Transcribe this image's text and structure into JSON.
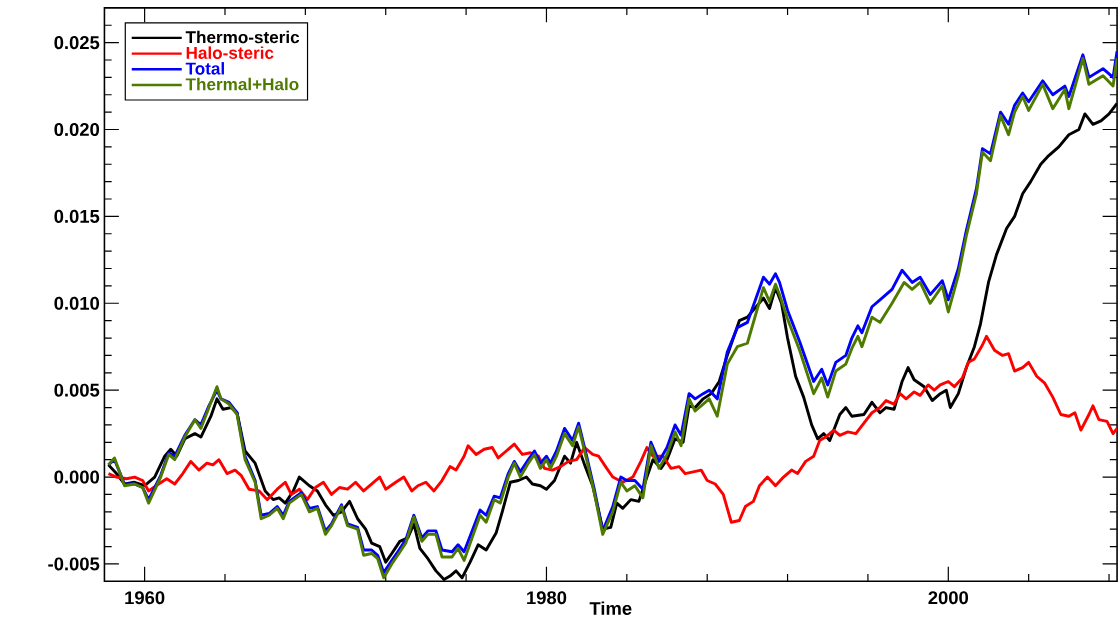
{
  "chart_data": {
    "type": "line",
    "xlabel": "Time",
    "legend": "top left",
    "line_style": "solid",
    "xlim": [
      1958,
      2008.4
    ],
    "ylim": [
      -0.006,
      0.027
    ],
    "xticks": [
      1960,
      {
        "value": 1964,
        "label": null
      },
      {
        "value": 1968,
        "label": null
      },
      {
        "value": 1972,
        "label": null
      },
      {
        "value": 1976,
        "label": null
      },
      1980,
      {
        "value": 1984,
        "label": null
      },
      {
        "value": 1988,
        "label": null
      },
      {
        "value": 1992,
        "label": null
      },
      {
        "value": 1996,
        "label": null
      },
      2000,
      {
        "value": 2004,
        "label": null
      },
      {
        "value": 2008,
        "label": null
      }
    ],
    "yticks": [
      {
        "value": -0.005,
        "label": "-0.005"
      },
      {
        "value": 0,
        "label": "0.000"
      },
      {
        "value": 0.005,
        "label": "0.005"
      },
      {
        "value": 0.01,
        "label": "0.010"
      },
      {
        "value": 0.015,
        "label": "0.015"
      },
      {
        "value": 0.02,
        "label": "0.020"
      },
      {
        "value": 0.025,
        "label": "0.025"
      },
      {
        "value": -0.004,
        "label": null
      },
      {
        "value": -0.003,
        "label": null
      },
      {
        "value": -0.002,
        "label": null
      },
      {
        "value": -0.001,
        "label": null
      },
      {
        "value": 0.001,
        "label": null
      },
      {
        "value": 0.002,
        "label": null
      },
      {
        "value": 0.003,
        "label": null
      },
      {
        "value": 0.004,
        "label": null
      },
      {
        "value": 0.006,
        "label": null
      },
      {
        "value": 0.007,
        "label": null
      },
      {
        "value": 0.008,
        "label": null
      },
      {
        "value": 0.009,
        "label": null
      },
      {
        "value": 0.011,
        "label": null
      },
      {
        "value": 0.012,
        "label": null
      },
      {
        "value": 0.013,
        "label": null
      },
      {
        "value": 0.014,
        "label": null
      },
      {
        "value": 0.016,
        "label": null
      },
      {
        "value": 0.017,
        "label": null
      },
      {
        "value": 0.018,
        "label": null
      },
      {
        "value": 0.019,
        "label": null
      },
      {
        "value": 0.021,
        "label": null
      },
      {
        "value": 0.022,
        "label": null
      },
      {
        "value": 0.023,
        "label": null
      },
      {
        "value": 0.024,
        "label": null
      },
      {
        "value": 0.026,
        "label": null
      }
    ],
    "series": [
      {
        "name": "Thermo-steric",
        "color": "#000000",
        "x": [
          1958.2,
          1958.6,
          1959.0,
          1959.5,
          1960.0,
          1960.5,
          1961.0,
          1961.3,
          1961.6,
          1962.0,
          1962.5,
          1962.8,
          1963.3,
          1963.6,
          1963.9,
          1964.3,
          1964.6,
          1965.0,
          1965.5,
          1966.0,
          1966.4,
          1966.7,
          1967.0,
          1967.4,
          1967.7,
          1968.2,
          1968.6,
          1969.0,
          1969.4,
          1969.8,
          1970.2,
          1970.6,
          1971.0,
          1971.3,
          1971.7,
          1972.0,
          1972.3,
          1972.7,
          1973.1,
          1973.4,
          1973.7,
          1974.1,
          1974.5,
          1974.9,
          1975.2,
          1975.5,
          1975.8,
          1976.2,
          1976.6,
          1977.0,
          1977.5,
          1977.8,
          1978.2,
          1978.6,
          1979.0,
          1979.3,
          1979.7,
          1980.0,
          1980.4,
          1980.9,
          1981.2,
          1981.5,
          1981.9,
          1982.3,
          1982.8,
          1983.2,
          1983.5,
          1983.8,
          1984.2,
          1984.6,
          1985.0,
          1985.3,
          1985.7,
          1986.0,
          1986.4,
          1986.8,
          1987.1,
          1987.4,
          1987.8,
          1988.2,
          1988.6,
          1989.0,
          1989.6,
          1990.0,
          1990.8,
          1991.1,
          1991.4,
          1991.7,
          1992.0,
          1992.4,
          1992.8,
          1993.2,
          1993.5,
          1993.8,
          1994.1,
          1994.6,
          1994.9,
          1995.2,
          1995.8,
          1996.2,
          1996.6,
          1996.9,
          1997.3,
          1997.7,
          1998.0,
          1998.3,
          1998.8,
          1999.2,
          1999.6,
          1999.9,
          2000.1,
          2000.5,
          2000.9,
          2001.3,
          2001.6,
          2002.0,
          2002.4,
          2002.9,
          2003.3,
          2003.7,
          2004.1,
          2004.6,
          2005.0,
          2005.5,
          2006.0,
          2006.5,
          2006.8,
          2007.2,
          2007.6,
          2008.0,
          2008.4
        ],
        "values": [
          0.0007,
          0.0002,
          -0.0004,
          -0.0003,
          -0.0005,
          0.0,
          0.0012,
          0.0016,
          0.0012,
          0.0022,
          0.0025,
          0.0023,
          0.0035,
          0.0045,
          0.0039,
          0.004,
          0.0037,
          0.0015,
          0.0008,
          -0.0008,
          -0.0013,
          -0.0012,
          -0.0015,
          -0.0008,
          0.0,
          -0.0005,
          -0.0008,
          -0.0016,
          -0.0022,
          -0.002,
          -0.0014,
          -0.0024,
          -0.003,
          -0.0038,
          -0.004,
          -0.0049,
          -0.0044,
          -0.0037,
          -0.0035,
          -0.0027,
          -0.0041,
          -0.0047,
          -0.0054,
          -0.0059,
          -0.0057,
          -0.0054,
          -0.0058,
          -0.0049,
          -0.0039,
          -0.0042,
          -0.0032,
          -0.002,
          -0.0003,
          -0.0002,
          0.0,
          -0.0004,
          -0.0005,
          -0.0007,
          -0.0002,
          0.0012,
          0.0008,
          0.002,
          0.0007,
          -0.0005,
          -0.003,
          -0.0029,
          -0.0015,
          -0.0018,
          -0.0013,
          -0.0014,
          0.0,
          0.001,
          0.0005,
          0.001,
          0.0022,
          0.002,
          0.0041,
          0.004,
          0.0045,
          0.0048,
          0.0055,
          0.007,
          0.009,
          0.0092,
          0.0103,
          0.0097,
          0.0109,
          0.01,
          0.008,
          0.0058,
          0.0046,
          0.003,
          0.0022,
          0.0025,
          0.0021,
          0.0036,
          0.004,
          0.0035,
          0.0036,
          0.0043,
          0.0037,
          0.004,
          0.0039,
          0.0055,
          0.0063,
          0.0056,
          0.0052,
          0.0044,
          0.0048,
          0.005,
          0.004,
          0.0048,
          0.0063,
          0.0075,
          0.0088,
          0.0112,
          0.0128,
          0.0143,
          0.015,
          0.0163,
          0.017,
          0.018,
          0.0185,
          0.019,
          0.0197,
          0.02,
          0.0209,
          0.0203,
          0.0205,
          0.0209,
          0.0215
        ]
      },
      {
        "name": "Halo-steric",
        "color": "#ff0000",
        "x": [
          1958.2,
          1958.6,
          1959.1,
          1959.5,
          1959.9,
          1960.2,
          1960.7,
          1961.1,
          1961.5,
          1961.9,
          1962.3,
          1962.7,
          1963.1,
          1963.4,
          1963.7,
          1964.1,
          1964.5,
          1964.8,
          1965.2,
          1965.7,
          1966.1,
          1966.6,
          1967.0,
          1967.3,
          1967.7,
          1968.1,
          1968.5,
          1968.9,
          1969.3,
          1969.7,
          1970.1,
          1970.5,
          1970.9,
          1971.3,
          1971.7,
          1972.0,
          1972.5,
          1972.9,
          1973.3,
          1973.6,
          1974.0,
          1974.4,
          1974.8,
          1975.2,
          1975.5,
          1975.9,
          1976.1,
          1976.5,
          1976.9,
          1977.3,
          1977.6,
          1978.0,
          1978.4,
          1978.8,
          1979.2,
          1979.6,
          1979.9,
          1980.3,
          1980.7,
          1981.1,
          1981.5,
          1981.9,
          1982.3,
          1982.6,
          1983.0,
          1983.3,
          1983.8,
          1984.3,
          1984.7,
          1985.0,
          1985.3,
          1985.8,
          1986.2,
          1986.6,
          1986.9,
          1987.3,
          1987.7,
          1988.0,
          1988.4,
          1988.8,
          1989.2,
          1989.6,
          1989.9,
          1990.3,
          1990.6,
          1991.0,
          1991.4,
          1991.8,
          1992.2,
          1992.5,
          1992.9,
          1993.3,
          1993.6,
          1993.9,
          1994.3,
          1994.6,
          1995.0,
          1995.4,
          1995.8,
          1996.2,
          1996.6,
          1996.9,
          1997.3,
          1997.6,
          1997.9,
          1998.3,
          1998.6,
          1999.0,
          1999.3,
          1999.6,
          2000.0,
          2000.3,
          2000.7,
          2001.0,
          2001.3,
          2001.7,
          2001.9,
          2002.3,
          2002.7,
          2003.0,
          2003.3,
          2003.7,
          2004.0,
          2004.4,
          2004.8,
          2005.2,
          2005.6,
          2006.0,
          2006.3,
          2006.6,
          2007.0,
          2007.2,
          2007.5,
          2007.9,
          2008.2,
          2008.4
        ],
        "values": [
          0.0002,
          0.0,
          -0.0001,
          0.0,
          -0.0002,
          -0.0008,
          -0.0004,
          -0.0001,
          -0.0004,
          0.0002,
          0.0009,
          0.0004,
          0.0008,
          0.0007,
          0.001,
          0.0002,
          0.0004,
          0.0001,
          -0.0007,
          -0.0008,
          -0.0013,
          -0.0007,
          -0.0003,
          -0.001,
          -0.0007,
          -0.0013,
          -0.0006,
          -0.0003,
          -0.001,
          -0.0006,
          -0.0007,
          -0.0003,
          -0.0008,
          -0.0004,
          0.0,
          -0.0007,
          -0.0003,
          0.0,
          -0.0008,
          -0.0005,
          -0.0003,
          -0.0008,
          -0.0002,
          0.0006,
          0.0004,
          0.0012,
          0.0018,
          0.0013,
          0.0016,
          0.0017,
          0.0011,
          0.0015,
          0.0019,
          0.0013,
          0.0014,
          0.0012,
          0.0005,
          0.0004,
          0.0006,
          0.0009,
          0.001,
          0.0017,
          0.0013,
          0.0012,
          0.0005,
          0.0,
          -0.0003,
          0.0,
          0.0009,
          0.0017,
          0.0012,
          0.0012,
          0.0005,
          0.0006,
          0.0002,
          0.0003,
          0.0004,
          -0.0002,
          -0.0004,
          -0.001,
          -0.0026,
          -0.0025,
          -0.0017,
          -0.0014,
          -0.0005,
          0.0,
          -0.0005,
          0.0,
          0.0004,
          0.0002,
          0.0009,
          0.0012,
          0.0021,
          0.0023,
          0.0027,
          0.0024,
          0.0026,
          0.0025,
          0.0031,
          0.0037,
          0.004,
          0.0044,
          0.0042,
          0.0048,
          0.0045,
          0.0049,
          0.0047,
          0.0053,
          0.005,
          0.0053,
          0.0055,
          0.0052,
          0.0057,
          0.0066,
          0.0068,
          0.0076,
          0.0081,
          0.0073,
          0.007,
          0.0071,
          0.0061,
          0.0063,
          0.0066,
          0.0058,
          0.0054,
          0.0046,
          0.0036,
          0.0035,
          0.0037,
          0.0027,
          0.0036,
          0.0041,
          0.0033,
          0.0032,
          0.0025,
          0.0028
        ]
      },
      {
        "name": "Total",
        "color": "#0000ff",
        "x": [
          1958.2,
          1958.5,
          1959.0,
          1959.5,
          1959.9,
          1960.2,
          1960.8,
          1961.2,
          1961.5,
          1962.0,
          1962.5,
          1962.8,
          1963.2,
          1963.6,
          1963.8,
          1964.2,
          1964.6,
          1965.0,
          1965.5,
          1965.8,
          1966.2,
          1966.6,
          1966.9,
          1967.2,
          1967.8,
          1968.2,
          1968.6,
          1969.0,
          1969.3,
          1969.8,
          1970.1,
          1970.6,
          1970.9,
          1971.3,
          1971.6,
          1971.9,
          1972.3,
          1972.6,
          1973.0,
          1973.4,
          1973.8,
          1974.1,
          1974.5,
          1974.8,
          1975.3,
          1975.6,
          1975.9,
          1976.3,
          1976.7,
          1977.0,
          1977.4,
          1977.7,
          1978.1,
          1978.4,
          1978.7,
          1979.1,
          1979.4,
          1979.7,
          1980.0,
          1980.2,
          1980.5,
          1980.9,
          1981.3,
          1981.6,
          1982.0,
          1982.4,
          1982.8,
          1983.3,
          1983.7,
          1984.0,
          1984.4,
          1984.8,
          1985.2,
          1985.6,
          1986.0,
          1986.4,
          1986.7,
          1987.1,
          1987.4,
          1987.8,
          1988.1,
          1988.5,
          1989.0,
          1989.5,
          1990.0,
          1990.8,
          1991.1,
          1991.4,
          1991.6,
          1992.0,
          1992.6,
          1993.3,
          1993.7,
          1994.0,
          1994.4,
          1994.9,
          1995.2,
          1995.5,
          1995.7,
          1996.2,
          1996.6,
          1997.2,
          1997.7,
          1998.2,
          1998.6,
          1999.1,
          1999.7,
          2000.0,
          2000.5,
          2000.9,
          2001.4,
          2001.7,
          2002.1,
          2002.6,
          2003.0,
          2003.3,
          2003.7,
          2004.0,
          2004.7,
          2005.2,
          2005.8,
          2006.0,
          2006.7,
          2007.0,
          2007.7,
          2008.2,
          2008.4
        ],
        "values": [
          0.0007,
          0.001,
          -0.0004,
          -0.0004,
          -0.0006,
          -0.0013,
          0.0001,
          0.0014,
          0.0012,
          0.0024,
          0.0033,
          0.003,
          0.0041,
          0.005,
          0.0045,
          0.0043,
          0.0037,
          0.0012,
          -0.0002,
          -0.0022,
          -0.0021,
          -0.0017,
          -0.0022,
          -0.0014,
          -0.0009,
          -0.0018,
          -0.0017,
          -0.0031,
          -0.0027,
          -0.0016,
          -0.0027,
          -0.0029,
          -0.0042,
          -0.0042,
          -0.0045,
          -0.0055,
          -0.0048,
          -0.0043,
          -0.0036,
          -0.0022,
          -0.0035,
          -0.0031,
          -0.0031,
          -0.0042,
          -0.0043,
          -0.0039,
          -0.0043,
          -0.0031,
          -0.0019,
          -0.0022,
          -0.0011,
          -0.0012,
          0.0002,
          0.0009,
          0.0003,
          0.001,
          0.0015,
          0.0008,
          0.0012,
          0.0008,
          0.0015,
          0.0028,
          0.0021,
          0.0031,
          0.0012,
          -0.0008,
          -0.0031,
          -0.0017,
          0.0,
          -0.0002,
          -0.0002,
          -0.0007,
          0.002,
          0.0009,
          0.0017,
          0.003,
          0.0024,
          0.0048,
          0.0045,
          0.0048,
          0.005,
          0.0045,
          0.0072,
          0.0086,
          0.0089,
          0.0115,
          0.0111,
          0.0117,
          0.0112,
          0.0096,
          0.0078,
          0.0055,
          0.0062,
          0.0053,
          0.0066,
          0.007,
          0.008,
          0.0087,
          0.0083,
          0.0098,
          0.0102,
          0.0108,
          0.0119,
          0.0112,
          0.0115,
          0.0105,
          0.0113,
          0.0102,
          0.012,
          0.0142,
          0.0166,
          0.0189,
          0.0186,
          0.021,
          0.0203,
          0.0214,
          0.0221,
          0.0216,
          0.0228,
          0.022,
          0.0225,
          0.0219,
          0.0243,
          0.023,
          0.0235,
          0.023,
          0.0245
        ]
      },
      {
        "name": "Thermal+Halo",
        "color": "#4f7a00",
        "x": [
          1958.2,
          1958.5,
          1959.0,
          1959.5,
          1959.9,
          1960.2,
          1960.8,
          1961.2,
          1961.5,
          1962.0,
          1962.5,
          1962.8,
          1963.2,
          1963.6,
          1963.8,
          1964.2,
          1964.6,
          1965.0,
          1965.5,
          1965.8,
          1966.2,
          1966.6,
          1966.9,
          1967.2,
          1967.8,
          1968.2,
          1968.6,
          1969.0,
          1969.3,
          1969.8,
          1970.1,
          1970.6,
          1970.9,
          1971.3,
          1971.6,
          1971.9,
          1972.3,
          1972.6,
          1973.0,
          1973.4,
          1973.8,
          1974.1,
          1974.5,
          1974.8,
          1975.3,
          1975.6,
          1975.9,
          1976.3,
          1976.7,
          1977.0,
          1977.4,
          1977.7,
          1978.1,
          1978.4,
          1978.7,
          1979.1,
          1979.4,
          1979.7,
          1980.0,
          1980.2,
          1980.5,
          1980.9,
          1981.3,
          1981.6,
          1982.0,
          1982.4,
          1982.8,
          1983.3,
          1983.7,
          1984.0,
          1984.4,
          1984.8,
          1985.2,
          1985.6,
          1986.0,
          1986.4,
          1986.7,
          1987.1,
          1987.4,
          1987.8,
          1988.1,
          1988.5,
          1989.0,
          1989.5,
          1990.0,
          1990.8,
          1991.1,
          1991.4,
          1991.6,
          1992.0,
          1992.6,
          1993.3,
          1993.7,
          1994.0,
          1994.4,
          1994.9,
          1995.2,
          1995.5,
          1995.7,
          1996.2,
          1996.6,
          1997.2,
          1997.8,
          1998.2,
          1998.6,
          1999.1,
          1999.7,
          2000.0,
          2000.5,
          2000.9,
          2001.4,
          2001.7,
          2002.1,
          2002.6,
          2003.0,
          2003.3,
          2003.7,
          2004.0,
          2004.7,
          2005.2,
          2005.8,
          2006.0,
          2006.7,
          2007.0,
          2007.7,
          2008.2,
          2008.4
        ],
        "values": [
          0.0007,
          0.0011,
          -0.0005,
          -0.0004,
          -0.0006,
          -0.0015,
          0.0,
          0.0013,
          0.001,
          0.0023,
          0.0033,
          0.0028,
          0.004,
          0.0052,
          0.0045,
          0.0042,
          0.0036,
          0.001,
          -0.0003,
          -0.0024,
          -0.0022,
          -0.0018,
          -0.0024,
          -0.0015,
          -0.001,
          -0.002,
          -0.0018,
          -0.0033,
          -0.0028,
          -0.0017,
          -0.0028,
          -0.003,
          -0.0045,
          -0.0044,
          -0.0047,
          -0.0058,
          -0.005,
          -0.0045,
          -0.0038,
          -0.0023,
          -0.0037,
          -0.0033,
          -0.0033,
          -0.0046,
          -0.0046,
          -0.0041,
          -0.0048,
          -0.0035,
          -0.0022,
          -0.0026,
          -0.0013,
          -0.0015,
          0.0,
          0.0008,
          0.0,
          0.0008,
          0.0013,
          0.0005,
          0.001,
          0.0005,
          0.0012,
          0.0025,
          0.0018,
          0.0029,
          0.001,
          -0.001,
          -0.0033,
          -0.002,
          -0.0003,
          -0.0008,
          -0.0005,
          -0.0012,
          0.0018,
          0.0005,
          0.0013,
          0.0026,
          0.0018,
          0.0045,
          0.0038,
          0.0042,
          0.0045,
          0.0035,
          0.0065,
          0.0075,
          0.0077,
          0.0109,
          0.0101,
          0.0111,
          0.0105,
          0.0091,
          0.0073,
          0.0048,
          0.0057,
          0.0046,
          0.0061,
          0.0065,
          0.0074,
          0.0081,
          0.0075,
          0.0092,
          0.0089,
          0.01,
          0.0112,
          0.0108,
          0.0112,
          0.01,
          0.011,
          0.0095,
          0.0116,
          0.0139,
          0.0163,
          0.0187,
          0.0182,
          0.0208,
          0.0197,
          0.021,
          0.0219,
          0.0211,
          0.0226,
          0.0212,
          0.0223,
          0.0212,
          0.0241,
          0.0226,
          0.0231,
          0.0225,
          0.0241
        ]
      }
    ]
  }
}
